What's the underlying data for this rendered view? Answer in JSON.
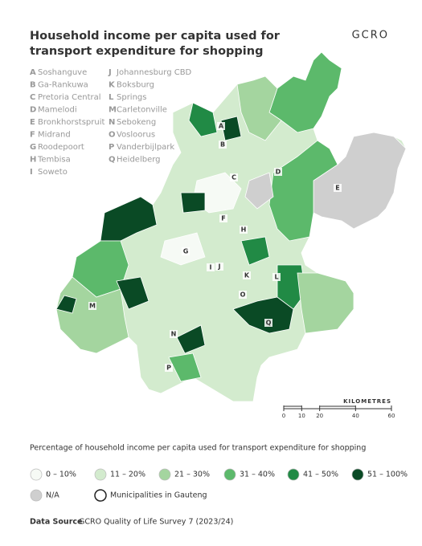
{
  "title": "Household income per capita used for transport expenditure for shopping",
  "logo": "GCRO",
  "key": [
    {
      "letter": "A",
      "name": "Soshanguve"
    },
    {
      "letter": "B",
      "name": "Ga-Rankuwa"
    },
    {
      "letter": "C",
      "name": "Pretoria Central"
    },
    {
      "letter": "D",
      "name": "Mamelodi"
    },
    {
      "letter": "E",
      "name": "Bronkhorstspruit"
    },
    {
      "letter": "F",
      "name": "Midrand"
    },
    {
      "letter": "G",
      "name": "Roodepoort"
    },
    {
      "letter": "H",
      "name": "Tembisa"
    },
    {
      "letter": "I",
      "name": "Soweto"
    },
    {
      "letter": "J",
      "name": "Johannesburg CBD"
    },
    {
      "letter": "K",
      "name": "Boksburg"
    },
    {
      "letter": "L",
      "name": "Springs"
    },
    {
      "letter": "M",
      "name": "Carletonville"
    },
    {
      "letter": "N",
      "name": "Sebokeng"
    },
    {
      "letter": "O",
      "name": "Vosloorus"
    },
    {
      "letter": "P",
      "name": "Vanderbijlpark"
    },
    {
      "letter": "Q",
      "name": "Heidelberg"
    }
  ],
  "scale": {
    "label": "KILOMETRES",
    "ticks": [
      0,
      10,
      20,
      40,
      60
    ]
  },
  "legend": {
    "title": "Percentage of household income per capita used for transport expenditure for shopping",
    "items": [
      {
        "label": "0 – 10%",
        "color": "#f6faf5"
      },
      {
        "label": "11 – 20%",
        "color": "#d3ebce"
      },
      {
        "label": "21 – 30%",
        "color": "#a4d59f"
      },
      {
        "label": "31 – 40%",
        "color": "#5cb96b"
      },
      {
        "label": "41 – 50%",
        "color": "#218a45"
      },
      {
        "label": "51 – 100%",
        "color": "#0a4a25"
      },
      {
        "label": "N/A",
        "color": "#cfcfcf"
      },
      {
        "label": "Municipalities in Gauteng",
        "color": "#ffffff"
      }
    ]
  },
  "source": {
    "label": "Data Source",
    "text": "GCRO Quality of Life Survey 7 (2023/24)"
  }
}
